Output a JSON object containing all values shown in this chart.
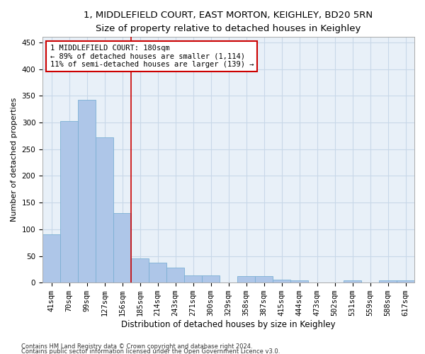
{
  "title1": "1, MIDDLEFIELD COURT, EAST MORTON, KEIGHLEY, BD20 5RN",
  "title2": "Size of property relative to detached houses in Keighley",
  "xlabel": "Distribution of detached houses by size in Keighley",
  "ylabel": "Number of detached properties",
  "footnote1": "Contains HM Land Registry data © Crown copyright and database right 2024.",
  "footnote2": "Contains public sector information licensed under the Open Government Licence v3.0.",
  "bin_labels": [
    "41sqm",
    "70sqm",
    "99sqm",
    "127sqm",
    "156sqm",
    "185sqm",
    "214sqm",
    "243sqm",
    "271sqm",
    "300sqm",
    "329sqm",
    "358sqm",
    "387sqm",
    "415sqm",
    "444sqm",
    "473sqm",
    "502sqm",
    "531sqm",
    "559sqm",
    "588sqm",
    "617sqm"
  ],
  "bar_values": [
    90,
    302,
    342,
    272,
    130,
    45,
    38,
    28,
    14,
    14,
    0,
    12,
    12,
    5,
    4,
    0,
    0,
    4,
    0,
    4,
    4
  ],
  "bar_color": "#aec6e8",
  "bar_edge_color": "#7bafd4",
  "grid_color": "#c8d8e8",
  "background_color": "#e8f0f8",
  "property_line_color": "#cc0000",
  "annotation_line1": "1 MIDDLEFIELD COURT: 180sqm",
  "annotation_line2": "← 89% of detached houses are smaller (1,114)",
  "annotation_line3": "11% of semi-detached houses are larger (139) →",
  "annotation_box_color": "#ffffff",
  "annotation_box_edge": "#cc0000",
  "ylim": [
    0,
    460
  ],
  "yticks": [
    0,
    50,
    100,
    150,
    200,
    250,
    300,
    350,
    400,
    450
  ],
  "title1_fontsize": 9.5,
  "title2_fontsize": 8.5,
  "xlabel_fontsize": 8.5,
  "ylabel_fontsize": 8,
  "tick_fontsize": 7.5,
  "annotation_fontsize": 7.5,
  "footnote_fontsize": 6
}
